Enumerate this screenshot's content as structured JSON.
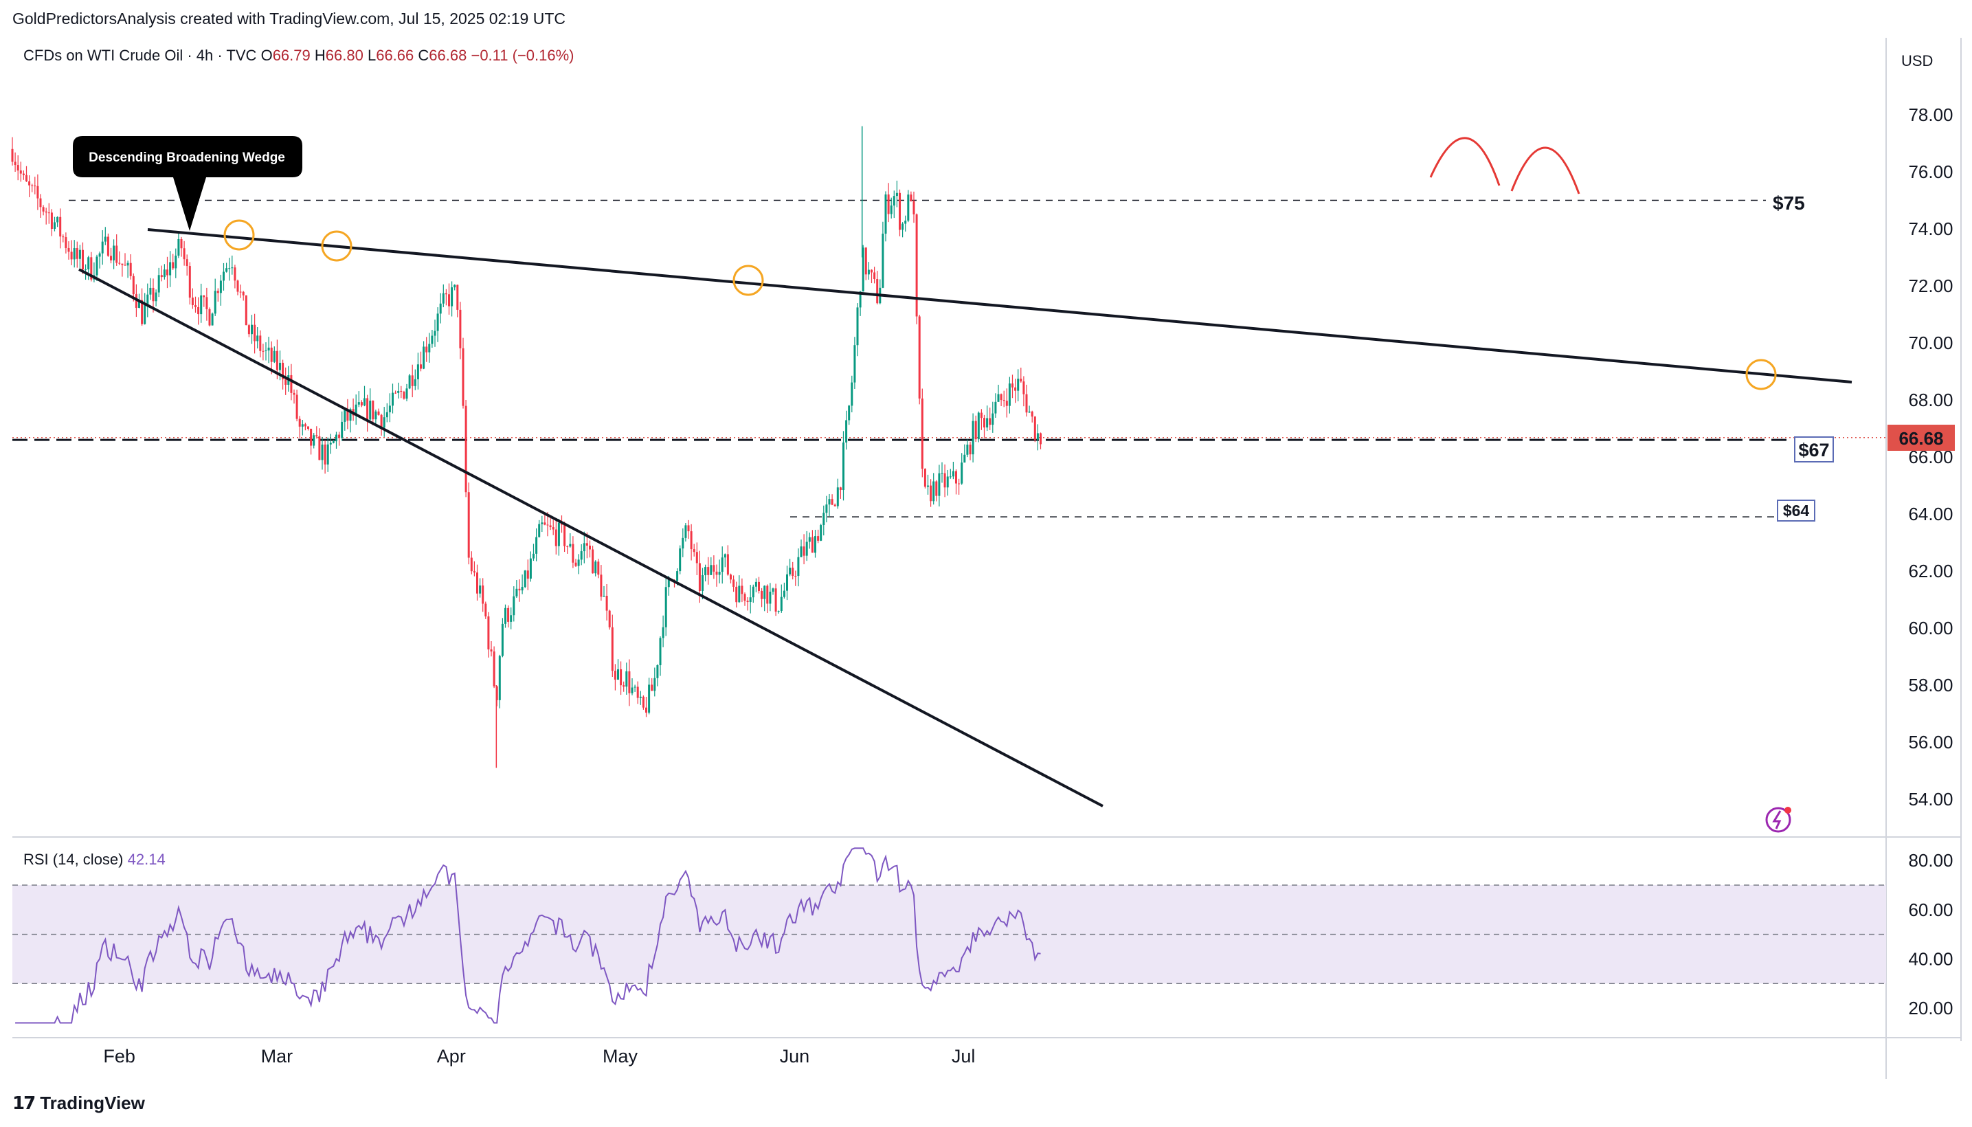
{
  "header": {
    "creator_line": "GoldPredictorsAnalysis created with TradingView.com, Jul 15, 2025 02:19 UTC"
  },
  "legend": {
    "symbol": "CFDs on WTI Crude Oil · 4h · TVC",
    "open_label": "O",
    "open": "66.79",
    "high_label": "H",
    "high": "66.80",
    "low_label": "L",
    "low": "66.66",
    "close_label": "C",
    "close": "66.68",
    "change": "−0.11 (−0.16%)"
  },
  "price_axis": {
    "currency": "USD",
    "ticks": [
      "78.00",
      "76.00",
      "74.00",
      "72.00",
      "70.00",
      "68.00",
      "66.00",
      "64.00",
      "62.00",
      "60.00",
      "58.00",
      "56.00",
      "54.00"
    ],
    "last_price": "66.68"
  },
  "rsi": {
    "label": "RSI (14, close)",
    "value": "42.14",
    "ticks": [
      "80.00",
      "60.00",
      "40.00",
      "20.00"
    ]
  },
  "time_axis": {
    "ticks": [
      "Feb",
      "Mar",
      "Apr",
      "May",
      "Jun",
      "Jul"
    ]
  },
  "annotations": {
    "wedge_callout": "Descending Broadening Wedge",
    "level_75": "$75",
    "level_67": "$67",
    "level_64": "$64"
  },
  "footer": {
    "brand": "TradingView"
  },
  "colors": {
    "up": "#089981",
    "down": "#f23645",
    "rsi_line": "#7e57c2",
    "rsi_band": "#ede7f6",
    "last_price": "#e0514a",
    "arc": "#e53935",
    "circle": "#f5a623"
  },
  "chart_data": [
    {
      "type": "candlestick",
      "title": "CFDs on WTI Crude Oil · 4h · TVC",
      "interval": "4h",
      "ylim": [
        53,
        79.5
      ],
      "y_ticks": [
        54,
        56,
        58,
        60,
        62,
        64,
        66,
        68,
        70,
        72,
        74,
        76,
        78
      ],
      "x_ticks": [
        "Feb",
        "Mar",
        "Apr",
        "May",
        "Jun",
        "Jul"
      ],
      "close_path": [
        {
          "date": "2025-01-13",
          "close": 76.8
        },
        {
          "date": "2025-01-15",
          "close": 75.6
        },
        {
          "date": "2025-01-20",
          "close": 74.4
        },
        {
          "date": "2025-01-24",
          "close": 73.0
        },
        {
          "date": "2025-01-27",
          "close": 72.6
        },
        {
          "date": "2025-01-30",
          "close": 73.5
        },
        {
          "date": "2025-02-03",
          "close": 72.3
        },
        {
          "date": "2025-02-05",
          "close": 71.0
        },
        {
          "date": "2025-02-10",
          "close": 72.7
        },
        {
          "date": "2025-02-12",
          "close": 73.4
        },
        {
          "date": "2025-02-14",
          "close": 71.6
        },
        {
          "date": "2025-02-17",
          "close": 71.0
        },
        {
          "date": "2025-02-19",
          "close": 72.4
        },
        {
          "date": "2025-02-21",
          "close": 73.0
        },
        {
          "date": "2025-02-24",
          "close": 70.4
        },
        {
          "date": "2025-02-27",
          "close": 69.6
        },
        {
          "date": "2025-03-03",
          "close": 68.8
        },
        {
          "date": "2025-03-05",
          "close": 67.0
        },
        {
          "date": "2025-03-07",
          "close": 66.5
        },
        {
          "date": "2025-03-10",
          "close": 66.0
        },
        {
          "date": "2025-03-13",
          "close": 67.3
        },
        {
          "date": "2025-03-17",
          "close": 67.7
        },
        {
          "date": "2025-03-20",
          "close": 67.4
        },
        {
          "date": "2025-03-24",
          "close": 68.5
        },
        {
          "date": "2025-03-27",
          "close": 69.7
        },
        {
          "date": "2025-03-31",
          "close": 71.5
        },
        {
          "date": "2025-04-02",
          "close": 71.8
        },
        {
          "date": "2025-04-03",
          "close": 68.0
        },
        {
          "date": "2025-04-04",
          "close": 62.5
        },
        {
          "date": "2025-04-07",
          "close": 60.5
        },
        {
          "date": "2025-04-09",
          "close": 57.5
        },
        {
          "date": "2025-04-10",
          "close": 60.2
        },
        {
          "date": "2025-04-14",
          "close": 61.5
        },
        {
          "date": "2025-04-17",
          "close": 63.5
        },
        {
          "date": "2025-04-21",
          "close": 63.2
        },
        {
          "date": "2025-04-23",
          "close": 62.3
        },
        {
          "date": "2025-04-25",
          "close": 63.0
        },
        {
          "date": "2025-04-28",
          "close": 61.2
        },
        {
          "date": "2025-04-30",
          "close": 58.4
        },
        {
          "date": "2025-05-02",
          "close": 58.3
        },
        {
          "date": "2025-05-05",
          "close": 57.0
        },
        {
          "date": "2025-05-07",
          "close": 58.0
        },
        {
          "date": "2025-05-09",
          "close": 61.0
        },
        {
          "date": "2025-05-13",
          "close": 63.5
        },
        {
          "date": "2025-05-15",
          "close": 61.5
        },
        {
          "date": "2025-05-19",
          "close": 62.5
        },
        {
          "date": "2025-05-22",
          "close": 61.2
        },
        {
          "date": "2025-05-26",
          "close": 61.5
        },
        {
          "date": "2025-05-29",
          "close": 60.8
        },
        {
          "date": "2025-06-02",
          "close": 62.5
        },
        {
          "date": "2025-06-05",
          "close": 63.3
        },
        {
          "date": "2025-06-09",
          "close": 65.0
        },
        {
          "date": "2025-06-11",
          "close": 68.2
        },
        {
          "date": "2025-06-13",
          "close": 73.0
        },
        {
          "date": "2025-06-16",
          "close": 71.5
        },
        {
          "date": "2025-06-17",
          "close": 74.8
        },
        {
          "date": "2025-06-19",
          "close": 75.2
        },
        {
          "date": "2025-06-20",
          "close": 74.0
        },
        {
          "date": "2025-06-22",
          "close": 75.5
        },
        {
          "date": "2025-06-23",
          "close": 68.5
        },
        {
          "date": "2025-06-24",
          "close": 64.5
        },
        {
          "date": "2025-06-26",
          "close": 65.0
        },
        {
          "date": "2025-06-30",
          "close": 65.2
        },
        {
          "date": "2025-07-03",
          "close": 67.0
        },
        {
          "date": "2025-07-07",
          "close": 67.8
        },
        {
          "date": "2025-07-09",
          "close": 68.3
        },
        {
          "date": "2025-07-11",
          "close": 68.6
        },
        {
          "date": "2025-07-14",
          "close": 66.8
        },
        {
          "date": "2025-07-15",
          "close": 66.68
        }
      ],
      "extremes": {
        "high": 77.6,
        "low": 55.1
      },
      "levels": [
        {
          "label": "$75",
          "price": 75.0
        },
        {
          "label": "$67",
          "price": 66.6
        },
        {
          "label": "$64",
          "price": 63.9
        }
      ],
      "last_price": 66.68
    },
    {
      "type": "line",
      "title": "RSI (14, close)",
      "ylim": [
        10,
        90
      ],
      "y_ticks": [
        20,
        40,
        60,
        80
      ],
      "bands": [
        30,
        50,
        70
      ],
      "last_value": 42.14
    }
  ]
}
